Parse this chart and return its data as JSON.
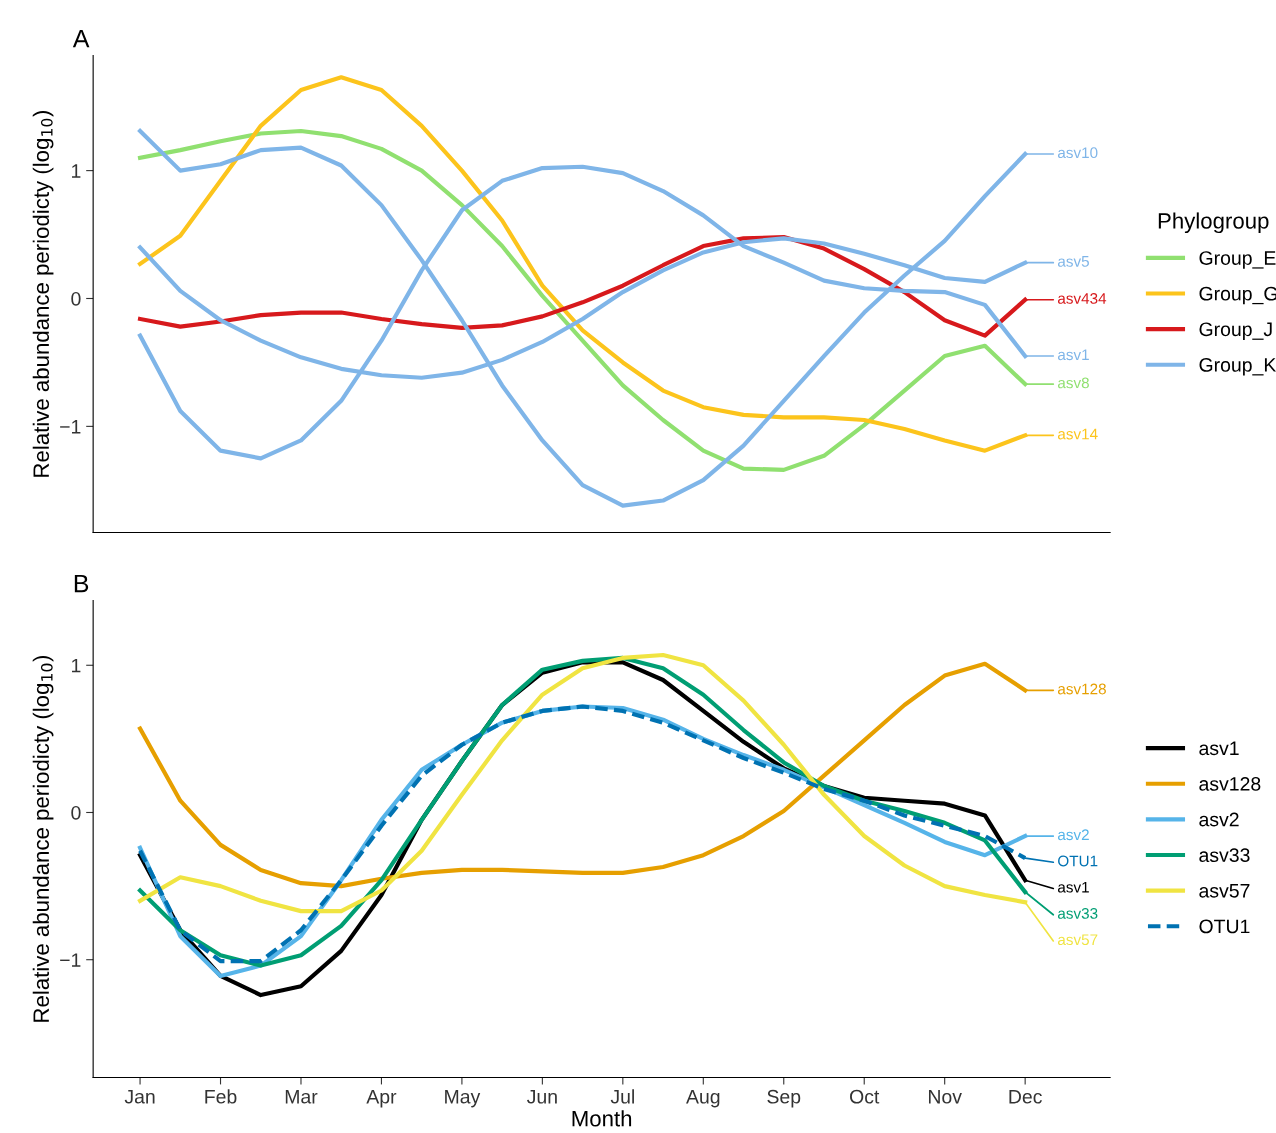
{
  "chart_data": [
    {
      "type": "line",
      "title": "A",
      "ylabel": "Relative abundance periodicty (log$_{10}$)",
      "legend_title": "Phylogroup",
      "legend": "right",
      "grid": false,
      "tick_labels": "y",
      "line_style": "solid",
      "marker": "none",
      "categories": [
        "Jan",
        null,
        "Feb",
        null,
        "Mar",
        null,
        "Apr",
        null,
        "May",
        null,
        "Jun",
        null,
        "Jul",
        null,
        "Aug",
        null,
        "Sep",
        null,
        "Oct",
        null,
        "Nov",
        null,
        "Dec"
      ],
      "ylim": [
        -1.83,
        1.9
      ],
      "yticks": [
        {
          "value": -1,
          "label": "−1"
        },
        0,
        1
      ],
      "series": [
        {
          "name": "Group_E",
          "color": "#90e070",
          "values": [
            1.1,
            1.16,
            1.23,
            1.29,
            1.31,
            1.27,
            1.17,
            1.0,
            0.73,
            0.41,
            0.02,
            -0.33,
            -0.68,
            -0.95,
            -1.19,
            -1.33,
            -1.34,
            -1.23,
            -0.99,
            -0.72,
            -0.45,
            -0.37,
            -0.67
          ]
        },
        {
          "name": "Group_G",
          "color": "#fcc41c",
          "values": [
            0.27,
            0.49,
            0.92,
            1.35,
            1.63,
            1.73,
            1.63,
            1.35,
            1.0,
            0.61,
            0.1,
            -0.25,
            -0.5,
            -0.72,
            -0.85,
            -0.91,
            -0.93,
            -0.93,
            -0.95,
            -1.02,
            -1.11,
            -1.19,
            -1.07
          ]
        },
        {
          "name": "Group_J",
          "color": "#d7191c",
          "values": [
            -0.16,
            -0.22,
            -0.18,
            -0.13,
            -0.11,
            -0.11,
            -0.16,
            -0.2,
            -0.23,
            -0.21,
            -0.14,
            -0.03,
            0.1,
            0.26,
            0.41,
            0.47,
            0.48,
            0.39,
            0.23,
            0.05,
            -0.17,
            -0.29,
            -0.01
          ]
        },
        {
          "name": "Group_K",
          "color": "#7fb5e8",
          "values": [
            1.31,
            1.0,
            1.05,
            1.16,
            1.18,
            1.04,
            0.73,
            0.3,
            -0.17,
            -0.68,
            -1.11,
            -1.46,
            -1.62,
            -1.58,
            -1.42,
            -1.15,
            -0.8,
            -0.45,
            -0.11,
            0.18,
            0.45,
            0.8,
            1.13
          ]
        },
        {
          "color": "#7fb5e8",
          "values": [
            -0.29,
            -0.88,
            -1.19,
            -1.25,
            -1.11,
            -0.8,
            -0.33,
            0.22,
            0.69,
            0.92,
            1.02,
            1.03,
            0.98,
            0.84,
            0.65,
            0.41,
            0.28,
            0.14,
            0.08,
            0.06,
            0.05,
            -0.05,
            -0.45
          ]
        },
        {
          "color": "#7fb5e8",
          "values": [
            0.4,
            0.06,
            -0.17,
            -0.33,
            -0.46,
            -0.55,
            -0.6,
            -0.62,
            -0.58,
            -0.48,
            -0.34,
            -0.16,
            0.05,
            0.22,
            0.36,
            0.44,
            0.47,
            0.43,
            0.35,
            0.26,
            0.16,
            0.13,
            0.28
          ]
        }
      ],
      "annotations": [
        {
          "text": "asv10",
          "x": "Dec",
          "y": 1.13
        },
        {
          "text": "asv5",
          "x": "Dec",
          "y": 0.28
        },
        {
          "text": "asv434",
          "x": "Dec",
          "y": -0.01
        },
        {
          "text": "asv1",
          "x": "Dec",
          "y": -0.45
        },
        {
          "text": "asv8",
          "x": "Dec",
          "y": -0.67
        },
        {
          "text": "asv14",
          "x": "Dec",
          "y": -1.07
        }
      ]
    },
    {
      "type": "line",
      "title": "B",
      "xlabel": "Month",
      "ylabel": "Relative abundance periodicty (log$_{10}$)",
      "legend": "right",
      "grid": false,
      "line_style": "solid",
      "marker": "none",
      "categories": [
        "Jan",
        null,
        "Feb",
        null,
        "Mar",
        null,
        "Apr",
        null,
        "May",
        null,
        "Jun",
        null,
        "Jul",
        null,
        "Aug",
        null,
        "Sep",
        null,
        "Oct",
        null,
        "Nov",
        null,
        "Dec"
      ],
      "ylim": [
        -1.8,
        1.44
      ],
      "yticks": [
        {
          "value": -1,
          "label": "−1"
        },
        0,
        1
      ],
      "series": [
        {
          "name": "asv1",
          "color": "#000000",
          "values": [
            -0.29,
            -0.8,
            -1.11,
            -1.24,
            -1.18,
            -0.94,
            -0.56,
            -0.05,
            0.35,
            0.73,
            0.95,
            1.02,
            1.02,
            0.9,
            0.69,
            0.48,
            0.3,
            0.18,
            0.1,
            0.08,
            0.06,
            -0.02,
            -0.46
          ]
        },
        {
          "name": "asv128",
          "color": "#e69f00",
          "values": [
            0.57,
            0.08,
            -0.22,
            -0.39,
            -0.48,
            -0.5,
            -0.45,
            -0.41,
            -0.39,
            -0.39,
            -0.4,
            -0.41,
            -0.41,
            -0.37,
            -0.29,
            -0.16,
            0.01,
            0.25,
            0.49,
            0.73,
            0.93,
            1.01,
            0.83
          ]
        },
        {
          "name": "asv2",
          "color": "#56b4e9",
          "values": [
            -0.24,
            -0.84,
            -1.11,
            -1.04,
            -0.84,
            -0.46,
            -0.05,
            0.29,
            0.46,
            0.61,
            0.69,
            0.72,
            0.71,
            0.63,
            0.5,
            0.39,
            0.29,
            0.17,
            0.05,
            -0.07,
            -0.2,
            -0.29,
            -0.16
          ]
        },
        {
          "name": "asv33",
          "color": "#009e73",
          "values": [
            -0.53,
            -0.8,
            -0.97,
            -1.04,
            -0.97,
            -0.77,
            -0.46,
            -0.05,
            0.35,
            0.73,
            0.97,
            1.03,
            1.05,
            0.98,
            0.8,
            0.56,
            0.34,
            0.18,
            0.08,
            0.01,
            -0.07,
            -0.19,
            -0.54
          ]
        },
        {
          "name": "asv57",
          "color": "#f0e442",
          "values": [
            -0.6,
            -0.44,
            -0.5,
            -0.6,
            -0.67,
            -0.67,
            -0.53,
            -0.26,
            0.12,
            0.49,
            0.8,
            0.98,
            1.05,
            1.07,
            1.0,
            0.76,
            0.46,
            0.12,
            -0.16,
            -0.36,
            -0.5,
            -0.56,
            -0.61
          ]
        },
        {
          "name": "OTU1",
          "color": "#0072b2",
          "line_style": "dashed",
          "values": [
            -0.26,
            -0.8,
            -1.01,
            -1.01,
            -0.8,
            -0.46,
            -0.09,
            0.25,
            0.46,
            0.61,
            0.69,
            0.72,
            0.69,
            0.61,
            0.49,
            0.37,
            0.27,
            0.16,
            0.08,
            -0.02,
            -0.09,
            -0.16,
            -0.31
          ]
        }
      ]
    }
  ]
}
